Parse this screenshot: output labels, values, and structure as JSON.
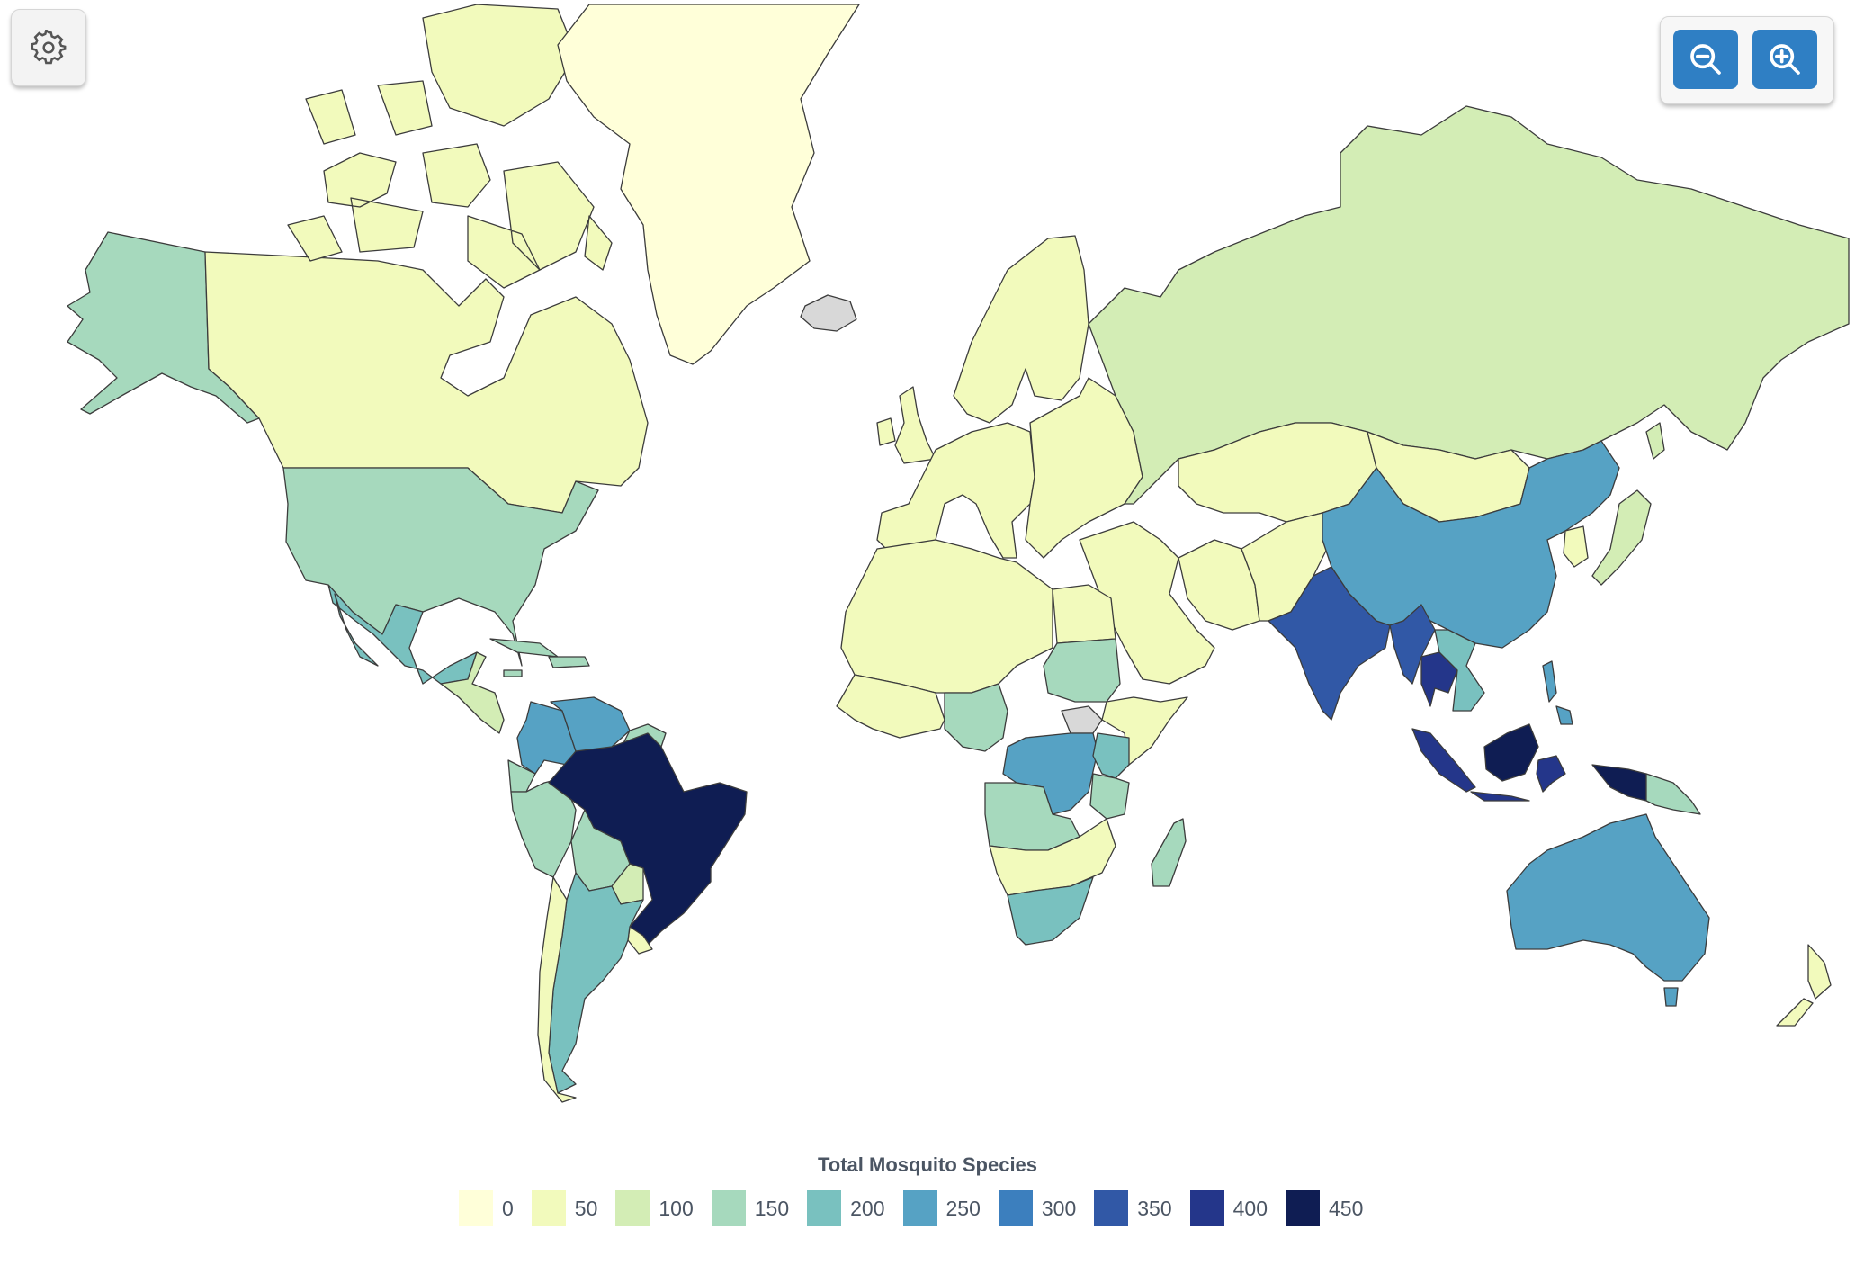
{
  "legend": {
    "title": "Total Mosquito Species",
    "items": [
      {
        "label": "0",
        "color": "#ffffd9"
      },
      {
        "label": "50",
        "color": "#f2fabc"
      },
      {
        "label": "100",
        "color": "#d3edb5"
      },
      {
        "label": "150",
        "color": "#a6d9bd"
      },
      {
        "label": "200",
        "color": "#79c1bf"
      },
      {
        "label": "250",
        "color": "#56a2c4"
      },
      {
        "label": "300",
        "color": "#3c7fbe"
      },
      {
        "label": "350",
        "color": "#3158a6"
      },
      {
        "label": "400",
        "color": "#24368a"
      },
      {
        "label": "450",
        "color": "#0f1d53"
      }
    ]
  },
  "no_data_color": "#d8d8d8",
  "controls": {
    "settings_icon": "gear-icon",
    "zoom_out_icon": "zoom-out-icon",
    "zoom_in_icon": "zoom-in-icon"
  },
  "regions": [
    {
      "name": "Alaska",
      "value": 175
    },
    {
      "name": "Canada",
      "value": 75
    },
    {
      "name": "Arctic Islands",
      "value": 75
    },
    {
      "name": "Greenland",
      "value": 5
    },
    {
      "name": "United States",
      "value": 175
    },
    {
      "name": "Mexico",
      "value": 205
    },
    {
      "name": "Central America",
      "value": 100
    },
    {
      "name": "Caribbean",
      "value": 130
    },
    {
      "name": "Colombia",
      "value": 265
    },
    {
      "name": "Venezuela",
      "value": 255
    },
    {
      "name": "Guianas",
      "value": 170
    },
    {
      "name": "Ecuador",
      "value": 150
    },
    {
      "name": "Peru",
      "value": 160
    },
    {
      "name": "Brazil",
      "value": 460
    },
    {
      "name": "Bolivia",
      "value": 150
    },
    {
      "name": "Paraguay",
      "value": 90
    },
    {
      "name": "Chile",
      "value": 40
    },
    {
      "name": "Argentina",
      "value": 200
    },
    {
      "name": "Uruguay",
      "value": 60
    },
    {
      "name": "Iceland",
      "value": null
    },
    {
      "name": "Scandinavia",
      "value": 40
    },
    {
      "name": "British Isles",
      "value": 45
    },
    {
      "name": "Western Europe",
      "value": 50
    },
    {
      "name": "Eastern Europe",
      "value": 45
    },
    {
      "name": "Russia",
      "value": 110
    },
    {
      "name": "Kazakhstan",
      "value": 30
    },
    {
      "name": "Mongolia",
      "value": 30
    },
    {
      "name": "Middle East",
      "value": 50
    },
    {
      "name": "Iran",
      "value": 60
    },
    {
      "name": "Pakistan",
      "value": 70
    },
    {
      "name": "India",
      "value": 345
    },
    {
      "name": "China",
      "value": 250
    },
    {
      "name": "Korea",
      "value": 60
    },
    {
      "name": "Japan",
      "value": 120
    },
    {
      "name": "Myanmar",
      "value": 340
    },
    {
      "name": "Thailand",
      "value": 390
    },
    {
      "name": "Indochina",
      "value": 190
    },
    {
      "name": "Philippines",
      "value": 275
    },
    {
      "name": "Sumatra",
      "value": 420
    },
    {
      "name": "Borneo",
      "value": 440
    },
    {
      "name": "Sulawesi",
      "value": 420
    },
    {
      "name": "New Guinea West",
      "value": 460
    },
    {
      "name": "Papua New Guinea",
      "value": 160
    },
    {
      "name": "Australia",
      "value": 250
    },
    {
      "name": "Tasmania",
      "value": 250
    },
    {
      "name": "New Zealand",
      "value": 40
    },
    {
      "name": "North Africa",
      "value": 40
    },
    {
      "name": "Egypt",
      "value": 50
    },
    {
      "name": "West Africa",
      "value": 40
    },
    {
      "name": "Cameroon Nigeria",
      "value": 170
    },
    {
      "name": "Sudan",
      "value": 150
    },
    {
      "name": "South Sudan",
      "value": null
    },
    {
      "name": "Ethiopia Somalia",
      "value": 60
    },
    {
      "name": "Congo DRC",
      "value": 260
    },
    {
      "name": "Kenya Uganda",
      "value": 220
    },
    {
      "name": "Tanzania",
      "value": 150
    },
    {
      "name": "Angola Zambia",
      "value": 140
    },
    {
      "name": "Southern Africa",
      "value": 50
    },
    {
      "name": "South Africa",
      "value": 180
    },
    {
      "name": "Madagascar",
      "value": 175
    }
  ]
}
